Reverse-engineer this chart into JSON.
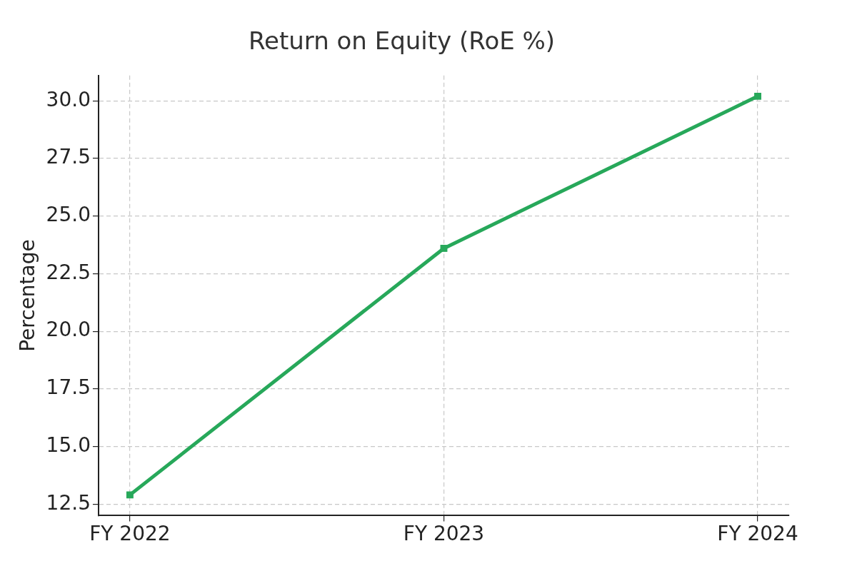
{
  "chart_data": {
    "type": "line",
    "title": "Return on Equity (RoE %)",
    "ylabel": "Percentage",
    "categories": [
      "FY 2022",
      "FY 2023",
      "FY 2024"
    ],
    "series": [
      {
        "color": "#27a85a",
        "values": [
          12.9,
          23.6,
          30.2
        ]
      }
    ],
    "ylim": [
      12.0,
      31.1
    ],
    "yticks": [
      {
        "value": 12.5,
        "label": "12.5"
      },
      {
        "value": 15,
        "label": "15.0"
      },
      {
        "value": 17.5,
        "label": "17.5"
      },
      {
        "value": 20,
        "label": "20.0"
      },
      {
        "value": 22.5,
        "label": "22.5"
      },
      {
        "value": 25,
        "label": "25.0"
      },
      {
        "value": 27.5,
        "label": "27.5"
      },
      {
        "value": 30,
        "label": "30.0"
      }
    ],
    "grid": true,
    "marker": "square",
    "line_style": "solid",
    "legend": false
  }
}
